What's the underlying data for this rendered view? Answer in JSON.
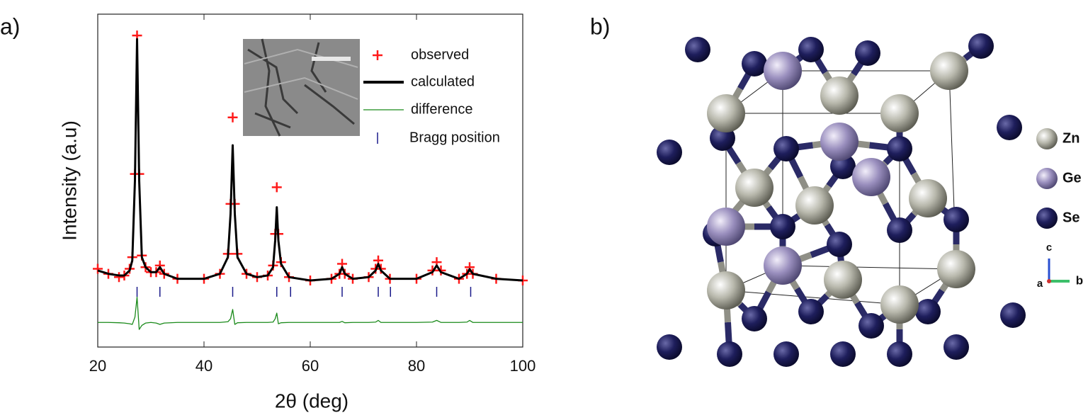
{
  "chart_data": {
    "type": "rietveld",
    "panel_label": "a)",
    "x_label": "2θ (deg)",
    "y_label": "Intensity (a.u)",
    "xlim": [
      20,
      100
    ],
    "xticks": [
      20,
      40,
      60,
      80,
      100
    ],
    "ylim": [
      0,
      100
    ],
    "x": [
      20,
      22,
      24,
      25,
      26,
      26.5,
      27,
      27.4,
      27.8,
      28.3,
      29,
      30,
      31,
      31.7,
      32.5,
      35,
      40,
      43,
      44.5,
      45,
      45.4,
      45.8,
      46.3,
      48,
      50,
      52,
      53,
      53.4,
      53.7,
      54,
      54.5,
      56,
      60,
      64,
      65.5,
      66,
      66.5,
      68,
      71,
      72.3,
      72.8,
      73.3,
      75,
      80,
      83,
      83.8,
      84.6,
      88,
      89.5,
      90,
      90.6,
      95,
      100
    ],
    "series": [
      {
        "name": "observed",
        "color": "#ff1a1a",
        "marker": "cross",
        "values": [
          23.5,
          22,
          21,
          21.5,
          23.5,
          27,
          52,
          93.6,
          52,
          27.5,
          24,
          22.5,
          22.5,
          24.5,
          22,
          20.5,
          20.5,
          22,
          28,
          43,
          69,
          43,
          28,
          22,
          21,
          21.5,
          24.5,
          34,
          48,
          34,
          25.5,
          21,
          20,
          20.5,
          22,
          25,
          22,
          20.5,
          21,
          23.5,
          26,
          23.5,
          20.5,
          20.5,
          23,
          25.5,
          23,
          20.5,
          22,
          24,
          22,
          20.5,
          20
        ]
      },
      {
        "name": "calculated",
        "color": "#000000",
        "marker": "line",
        "values": [
          23,
          22,
          21.5,
          21.5,
          23,
          26,
          50,
          92.5,
          50,
          27,
          24,
          22.5,
          22.5,
          24,
          22,
          20.5,
          20.5,
          22,
          27,
          40,
          60.6,
          40,
          27,
          22,
          21,
          21.5,
          24,
          32,
          42,
          32,
          25,
          21,
          20,
          20.5,
          22,
          24,
          22,
          20.5,
          21,
          23,
          25,
          23,
          20.5,
          20.5,
          22.5,
          24.5,
          22.5,
          20.5,
          22,
          23.4,
          22,
          20.5,
          20
        ]
      },
      {
        "name": "difference",
        "color": "#1a8a1a",
        "marker": "thin-line",
        "values": [
          7.4,
          7.4,
          7.3,
          7.2,
          7,
          6.8,
          9,
          15,
          5.3,
          6.5,
          7.2,
          7.4,
          7.2,
          6.8,
          7.2,
          7.4,
          7.4,
          7.4,
          7.6,
          8.5,
          11.3,
          6.8,
          7.3,
          7.4,
          7.4,
          7.4,
          7.5,
          8.5,
          10.2,
          7,
          7.3,
          7.4,
          7.4,
          7.4,
          7.4,
          7.7,
          7.3,
          7.4,
          7.4,
          7.5,
          8,
          7.4,
          7.4,
          7.4,
          7.5,
          8,
          7.4,
          7.4,
          7.5,
          8,
          7.4,
          7.4,
          7.4
        ]
      }
    ],
    "bragg_name": "Bragg position",
    "bragg_color": "#1a1a8a",
    "bragg_positions": [
      27.4,
      31.7,
      45.4,
      53.7,
      56.3,
      66,
      72.8,
      75.1,
      83.8,
      90.2
    ]
  },
  "structure": {
    "panel_label": "b)",
    "legend": [
      "Zn",
      "Ge",
      "Se"
    ],
    "axes": [
      "c",
      "a",
      "b"
    ]
  }
}
